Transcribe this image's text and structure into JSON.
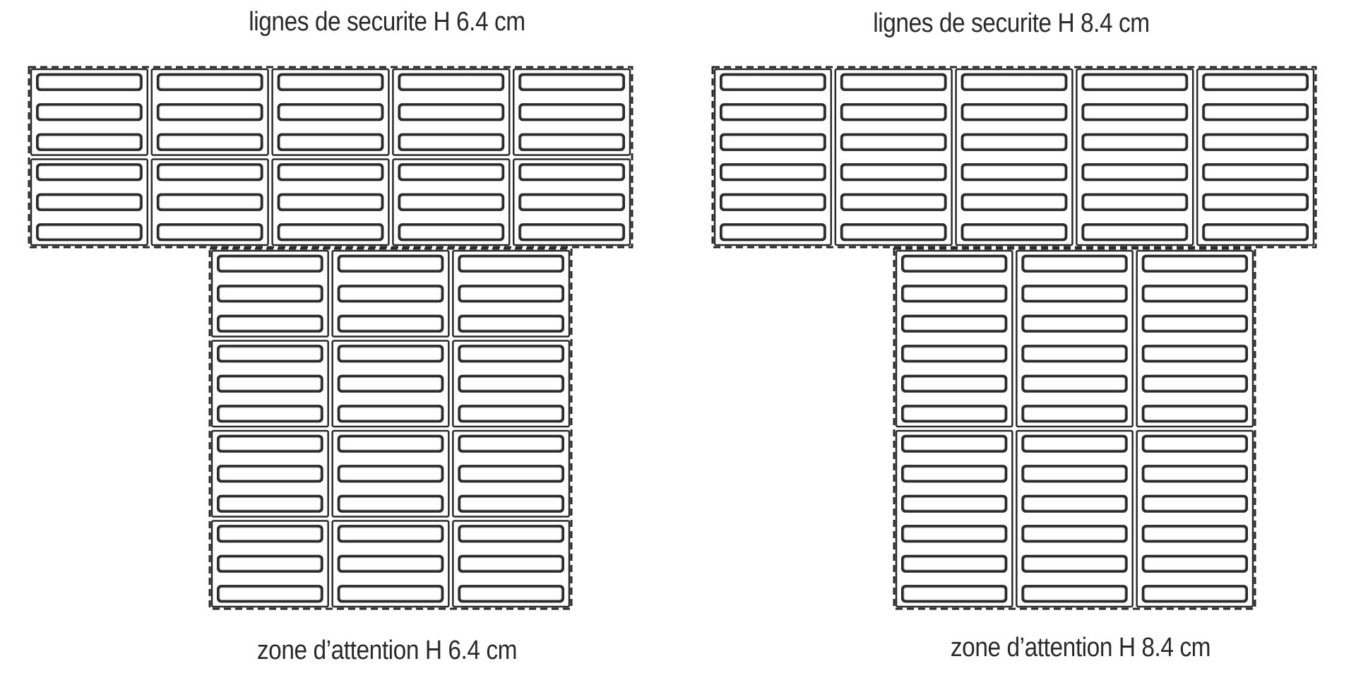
{
  "left": {
    "title": "lignes de securite H 6.4 cm",
    "caption": "zone d’attention H 6.4 cm"
  },
  "right": {
    "title": "lignes de securite H 8.4 cm",
    "caption": "zone d’attention H 8.4 cm"
  },
  "colors": {
    "stroke": "#2a2a2a",
    "background": "#ffffff"
  }
}
